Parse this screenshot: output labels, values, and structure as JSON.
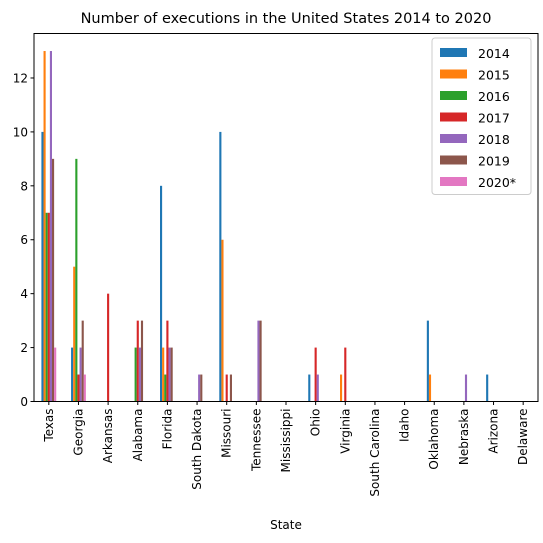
{
  "chart_data": {
    "type": "bar",
    "title": "Number of executions in the United States 2014 to 2020",
    "xlabel": "State",
    "ylabel": "",
    "ylim": [
      0,
      13.65
    ],
    "yticks": [
      0,
      2,
      4,
      6,
      8,
      10,
      12
    ],
    "grid": false,
    "legend_position": "top-right",
    "categories": [
      "Texas",
      "Georgia",
      "Arkansas",
      "Alabama",
      "Florida",
      "South Dakota",
      "Missouri",
      "Tennessee",
      "Mississippi",
      "Ohio",
      "Virginia",
      "South Carolina",
      "Idaho",
      "Oklahoma",
      "Nebraska",
      "Arizona",
      "Delaware"
    ],
    "series": [
      {
        "name": "2014",
        "color": "#1f77b4",
        "values": [
          10,
          2,
          0,
          0,
          8,
          0,
          10,
          0,
          0,
          1,
          0,
          0,
          0,
          3,
          0,
          1,
          0
        ]
      },
      {
        "name": "2015",
        "color": "#ff7f0e",
        "values": [
          13,
          5,
          0,
          0,
          2,
          0,
          6,
          0,
          0,
          0,
          1,
          0,
          0,
          1,
          0,
          0,
          0
        ]
      },
      {
        "name": "2016",
        "color": "#2ca02c",
        "values": [
          7,
          9,
          0,
          2,
          1,
          0,
          0,
          0,
          0,
          0,
          0,
          0,
          0,
          0,
          0,
          0,
          0
        ]
      },
      {
        "name": "2017",
        "color": "#d62728",
        "values": [
          7,
          1,
          4,
          3,
          3,
          0,
          1,
          0,
          0,
          2,
          2,
          0,
          0,
          0,
          0,
          0,
          0
        ]
      },
      {
        "name": "2018",
        "color": "#9467bd",
        "values": [
          13,
          2,
          0,
          2,
          2,
          1,
          0,
          3,
          0,
          1,
          0,
          0,
          0,
          0,
          1,
          0,
          0
        ]
      },
      {
        "name": "2019",
        "color": "#8c564b",
        "values": [
          9,
          3,
          0,
          3,
          2,
          1,
          1,
          3,
          0,
          0,
          0,
          0,
          0,
          0,
          0,
          0,
          0
        ]
      },
      {
        "name": "2020*",
        "color": "#e377c2",
        "values": [
          2,
          1,
          0,
          0,
          0,
          0,
          0,
          0,
          0,
          0,
          0,
          0,
          0,
          0,
          0,
          0,
          0
        ]
      }
    ]
  }
}
